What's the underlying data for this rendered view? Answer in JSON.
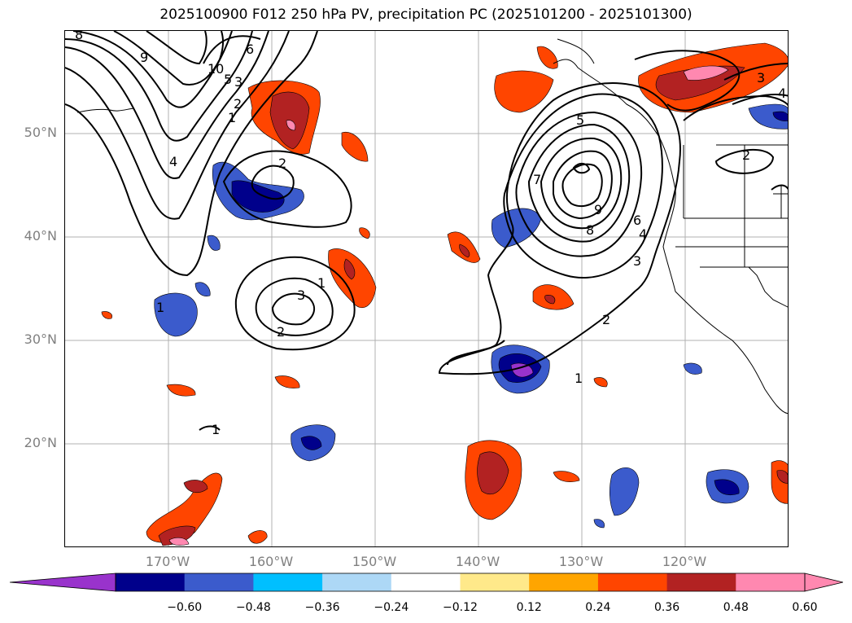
{
  "title": "2025100900 F012 250 hPa PV, precipitation PC (2025101200 - 2025101300)",
  "axes": {
    "lat_labels": [
      "50°N",
      "40°N",
      "30°N",
      "20°N"
    ],
    "lon_labels": [
      "170°W",
      "160°W",
      "150°W",
      "140°W",
      "130°W",
      "120°W"
    ]
  },
  "contour_labels": {
    "a": "8",
    "b": "9",
    "c": "10",
    "d": "6",
    "e": "5",
    "f": "3",
    "g": "2",
    "h": "1",
    "i": "4",
    "j": "2",
    "k": "1",
    "l": "3",
    "m": "2",
    "n": "1",
    "o": "5",
    "p": "7",
    "q": "9",
    "r": "8",
    "s": "6",
    "t": "4",
    "u": "3",
    "v": "2",
    "w": "1",
    "x": "3",
    "y": "2",
    "z": "4",
    "aa": "1"
  },
  "colorbar": {
    "ticks": [
      "−0.60",
      "−0.48",
      "−0.36",
      "−0.24",
      "−0.12",
      "0.12",
      "0.24",
      "0.36",
      "0.48",
      "0.60"
    ],
    "colors": [
      "#9933cc",
      "#00008b",
      "#3b5bcc",
      "#00bfff",
      "#add8f6",
      "#ffffff",
      "#ffe98a",
      "#ffa500",
      "#ff4500",
      "#b22222",
      "#ff88b0",
      "#ff88b0"
    ]
  }
}
